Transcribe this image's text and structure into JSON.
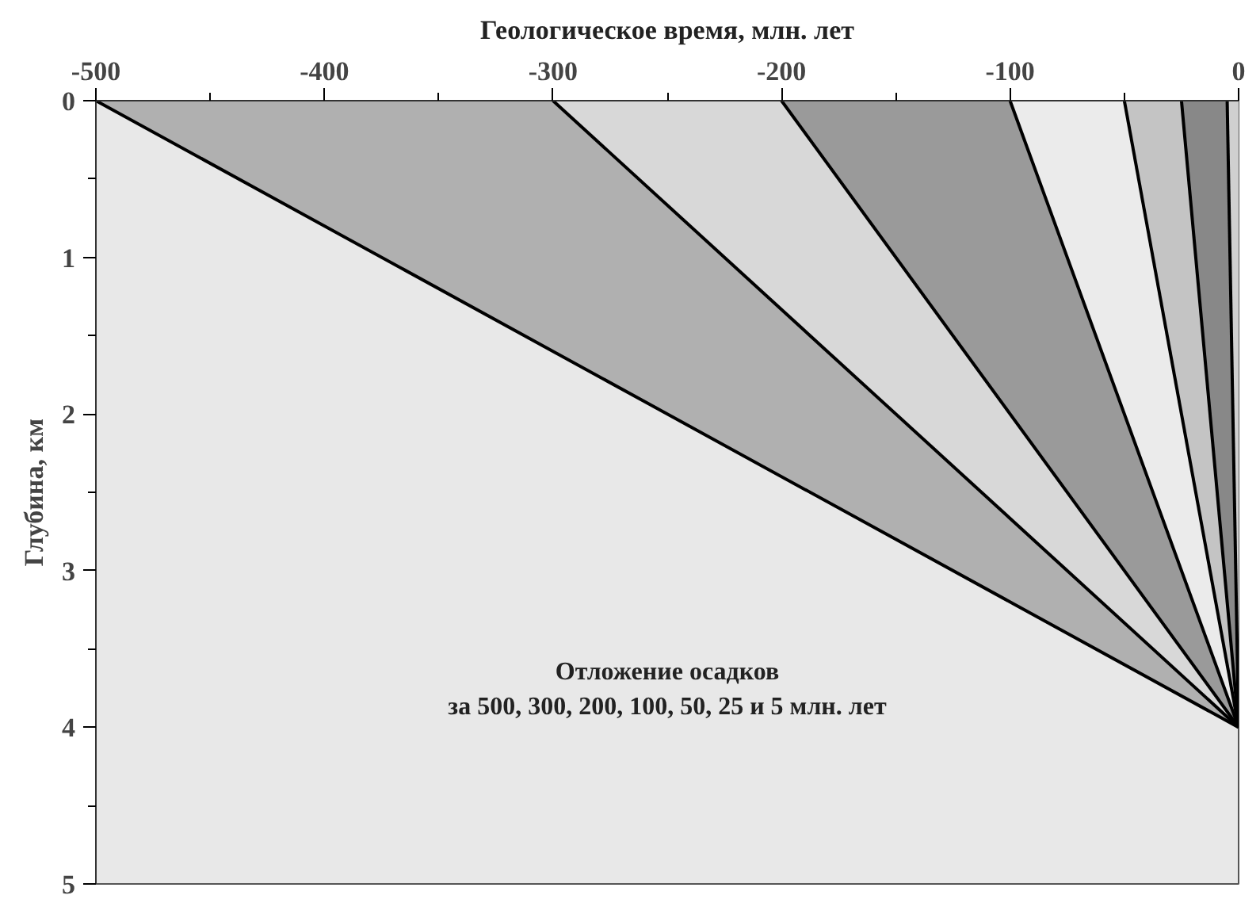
{
  "chart_data": {
    "type": "area",
    "title": "Геологическое время, млн. лет",
    "ylabel": "Глубина, км",
    "xlim": [
      -500,
      0
    ],
    "ylim": [
      5,
      0
    ],
    "xticks": [
      -500,
      {
        "value": -450,
        "label": null
      },
      -400,
      {
        "value": -350,
        "label": null
      },
      -300,
      {
        "value": -250,
        "label": null
      },
      -200,
      {
        "value": -150,
        "label": null
      },
      -100,
      {
        "value": -50,
        "label": null
      },
      0
    ],
    "yticks": [
      0,
      {
        "value": 0.5,
        "label": null
      },
      1,
      {
        "value": 1.5,
        "label": null
      },
      2,
      {
        "value": 2.5,
        "label": null
      },
      3,
      {
        "value": 3.5,
        "label": null
      },
      4,
      {
        "value": 4.5,
        "label": null
      },
      5
    ],
    "grid": false,
    "series": [
      {
        "color": "#b0b0b0",
        "x": [
          -500,
          0
        ],
        "values": [
          0,
          4
        ]
      },
      {
        "color": "#d8d8d8",
        "x": [
          -300,
          0
        ],
        "values": [
          0,
          4
        ]
      },
      {
        "color": "#9a9a9a",
        "x": [
          -200,
          0
        ],
        "values": [
          0,
          4
        ]
      },
      {
        "color": "#ebebeb",
        "x": [
          -100,
          0
        ],
        "values": [
          0,
          4
        ]
      },
      {
        "color": "#c4c4c4",
        "x": [
          -50,
          0
        ],
        "values": [
          0,
          4
        ]
      },
      {
        "color": "#888888",
        "x": [
          -25,
          0
        ],
        "values": [
          0,
          4
        ]
      },
      {
        "color": "#d0d0d0",
        "x": [
          -5,
          0
        ],
        "values": [
          0,
          4
        ]
      }
    ],
    "annotations": [
      "Отложение осадков",
      "за 500, 300, 200, 100, 50, 25 и 5 млн. лет"
    ]
  }
}
